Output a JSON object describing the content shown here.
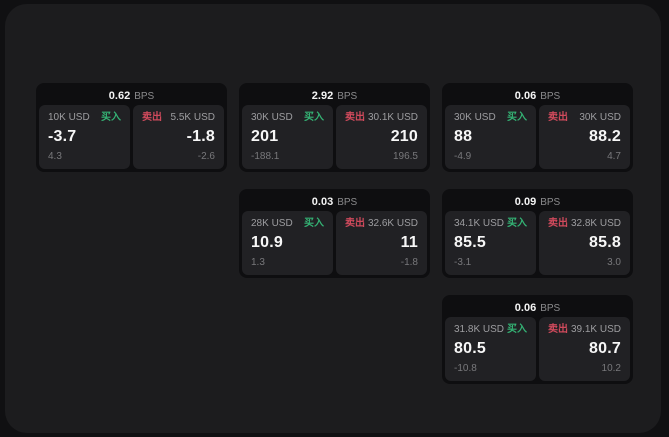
{
  "theme": {
    "page_bg": "#101012",
    "window_bg": "#1c1c1e",
    "card_bg": "#0e0e10",
    "panel_bg": "#212124",
    "buy_color": "#34b274",
    "sell_color": "#d04a5c"
  },
  "labels": {
    "bps_unit": "BPS",
    "buy": "买入",
    "sell": "卖出"
  },
  "cards": [
    {
      "bps": "0.62",
      "buy": {
        "amount": "10K USD",
        "value": "-3.7",
        "delta": "4.3"
      },
      "sell": {
        "amount": "5.5K USD",
        "value": "-1.8",
        "delta": "-2.6"
      }
    },
    {
      "bps": "2.92",
      "buy": {
        "amount": "30K USD",
        "value": "201",
        "delta": "-188.1"
      },
      "sell": {
        "amount": "30.1K USD",
        "value": "210",
        "delta": "196.5"
      }
    },
    {
      "bps": "0.06",
      "buy": {
        "amount": "30K USD",
        "value": "88",
        "delta": "-4.9"
      },
      "sell": {
        "amount": "30K USD",
        "value": "88.2",
        "delta": "4.7"
      }
    },
    {
      "bps": "0.03",
      "buy": {
        "amount": "28K USD",
        "value": "10.9",
        "delta": "1.3"
      },
      "sell": {
        "amount": "32.6K USD",
        "value": "11",
        "delta": "-1.8"
      }
    },
    {
      "bps": "0.09",
      "buy": {
        "amount": "34.1K USD",
        "value": "85.5",
        "delta": "-3.1"
      },
      "sell": {
        "amount": "32.8K USD",
        "value": "85.8",
        "delta": "3.0"
      }
    },
    {
      "bps": "0.06",
      "buy": {
        "amount": "31.8K USD",
        "value": "80.5",
        "delta": "-10.8"
      },
      "sell": {
        "amount": "39.1K USD",
        "value": "80.7",
        "delta": "10.2"
      }
    }
  ]
}
